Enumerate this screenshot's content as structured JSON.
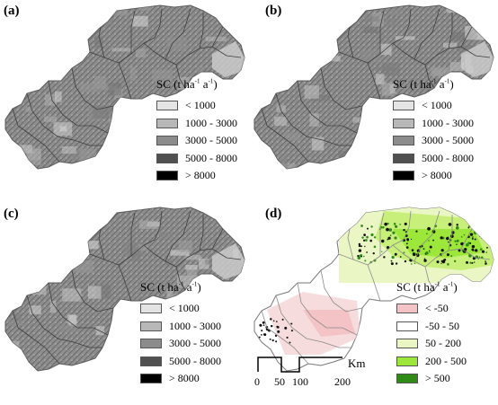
{
  "panels": [
    {
      "label": "(a)",
      "style": "gray"
    },
    {
      "label": "(b)",
      "style": "gray"
    },
    {
      "label": "(c)",
      "style": "gray"
    },
    {
      "label": "(d)",
      "style": "change"
    }
  ],
  "legend_sc": {
    "title_prefix": "SC (t ha",
    "exp1": "-1",
    "mid": " a",
    "exp2": "-1",
    "suffix": ")",
    "items": [
      {
        "label": "< 1000",
        "color": "#e4e4e4"
      },
      {
        "label": "1000 - 3000",
        "color": "#b8b8b8"
      },
      {
        "label": "3000 - 5000",
        "color": "#8c8c8c"
      },
      {
        "label": "5000 - 8000",
        "color": "#505050"
      },
      {
        "label": "> 8000",
        "color": "#000000"
      }
    ]
  },
  "legend_change": {
    "title_prefix": "SC (t ha",
    "exp1": "-1",
    "mid": " a",
    "exp2": "-1",
    "suffix": ")",
    "items": [
      {
        "label": "< -50",
        "color": "#f4c3c6"
      },
      {
        "label": "-50 - 50",
        "color": "#ffffff"
      },
      {
        "label": "50 - 200",
        "color": "#eaf7c4"
      },
      {
        "label": "200 - 500",
        "color": "#9de63a"
      },
      {
        "label": "> 500",
        "color": "#2f8a16"
      }
    ]
  },
  "scale_bar": {
    "ticks": [
      "0",
      "50",
      "100",
      "200"
    ],
    "unit": "Km"
  }
}
